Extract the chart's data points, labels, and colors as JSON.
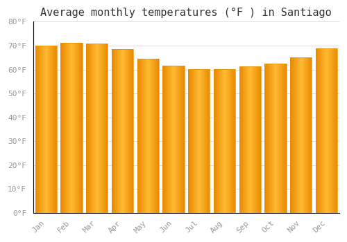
{
  "title": "Average monthly temperatures (°F ) in Santiago",
  "months": [
    "Jan",
    "Feb",
    "Mar",
    "Apr",
    "May",
    "Jun",
    "Jul",
    "Aug",
    "Sep",
    "Oct",
    "Nov",
    "Dec"
  ],
  "values": [
    70.0,
    71.2,
    70.8,
    68.5,
    64.5,
    61.5,
    60.3,
    60.3,
    61.2,
    62.5,
    65.0,
    68.8
  ],
  "bar_color_center": "#FFB733",
  "bar_color_edge": "#F0900A",
  "ylim": [
    0,
    80
  ],
  "yticks": [
    0,
    10,
    20,
    30,
    40,
    50,
    60,
    70,
    80
  ],
  "ytick_labels": [
    "0°F",
    "10°F",
    "20°F",
    "30°F",
    "40°F",
    "50°F",
    "60°F",
    "70°F",
    "80°F"
  ],
  "plot_bg_color": "#FFFFFF",
  "fig_bg_color": "#FFFFFF",
  "grid_color": "#DDDDDD",
  "title_fontsize": 11,
  "tick_fontsize": 8,
  "font_family": "monospace",
  "tick_color": "#999999",
  "bar_width": 0.85
}
